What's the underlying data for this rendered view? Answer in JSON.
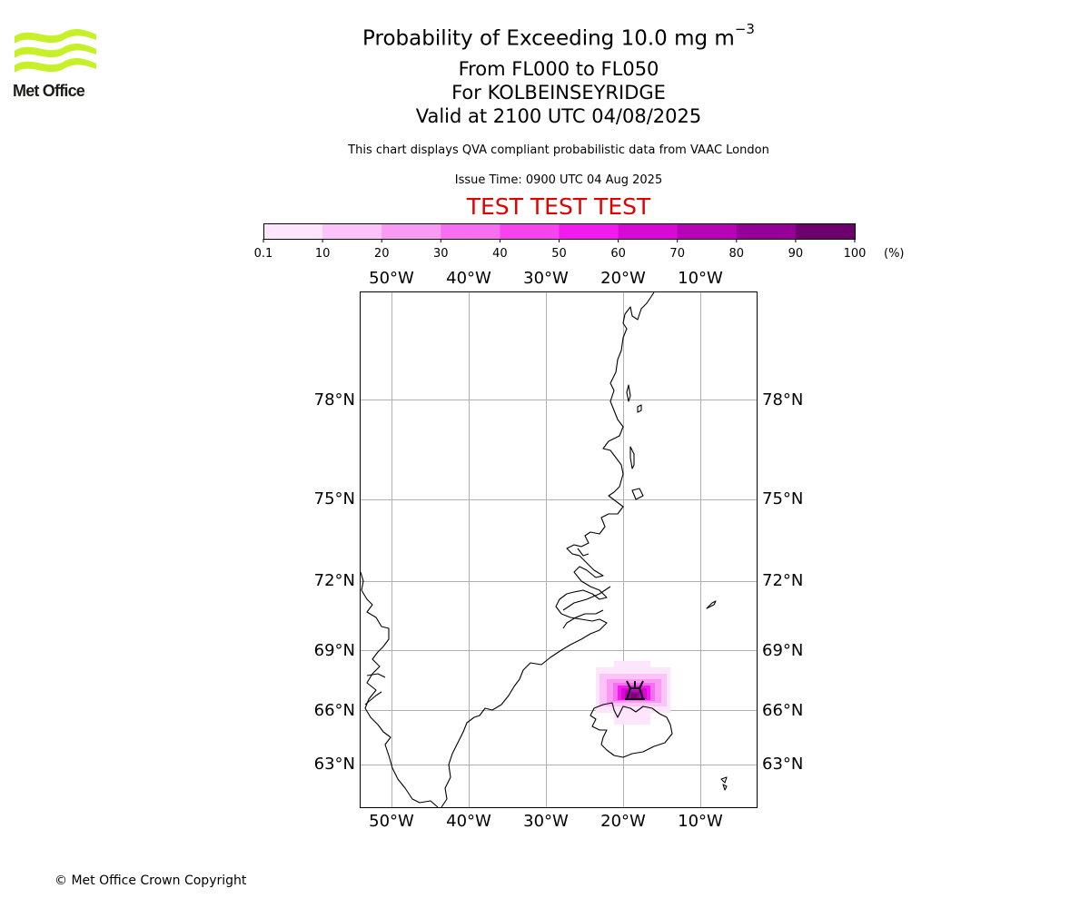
{
  "logo": {
    "text": "Met Office"
  },
  "header": {
    "title_main": "Probability of Exceeding 10.0 mg m",
    "title_exponent": "−3",
    "level_range": "From FL000 to FL050",
    "location": "For KOLBEINSEYRIDGE",
    "valid_time": "Valid at 2100 UTC 04/08/2025",
    "description": "This chart displays QVA compliant probabilistic data from VAAC London",
    "issue_time": "Issue Time: 0900 UTC 04 Aug 2025",
    "test_banner": "TEST TEST TEST"
  },
  "colorbar": {
    "ticks": [
      "0.1",
      "10",
      "20",
      "30",
      "40",
      "50",
      "60",
      "70",
      "80",
      "90",
      "100"
    ],
    "unit": "(%)",
    "colors": [
      "#fde6fb",
      "#fbc3f7",
      "#f99af3",
      "#f76ff0",
      "#f543ee",
      "#f21aee",
      "#d60ad4",
      "#b704b6",
      "#960096",
      "#6e006e"
    ]
  },
  "map": {
    "lon_labels": [
      "50°W",
      "40°W",
      "30°W",
      "20°W",
      "10°W"
    ],
    "lat_labels": [
      "78°N",
      "75°N",
      "72°N",
      "69°N",
      "66°N",
      "63°N"
    ],
    "volcano_icon": "volcano-icon",
    "grid_color": "#b0b0b0"
  },
  "footer": {
    "copyright": "© Met Office Crown Copyright"
  }
}
